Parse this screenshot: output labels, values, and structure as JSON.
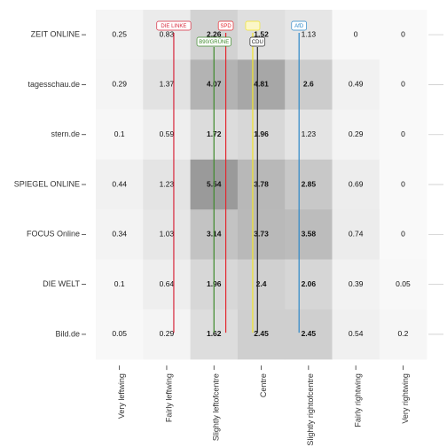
{
  "chart_data": {
    "type": "heatmap",
    "title": "",
    "xlabel": "",
    "ylabel": "",
    "columns": [
      "Very leftwing",
      "Fairly leftwing",
      "Slightly leftofcentre",
      "Centre",
      "Slightly rightofcentre",
      "Fairly rightwing",
      "Very rightwing"
    ],
    "rows": [
      "ZEIT ONLINE",
      "tagesschau.de",
      "stern.de",
      "SPIEGEL ONLINE",
      "FOCUS Online",
      "DIE WELT",
      "Bild.de"
    ],
    "values": [
      [
        0.25,
        0.83,
        2.26,
        1.52,
        1.13,
        0,
        0
      ],
      [
        0.29,
        1.37,
        4.07,
        4.81,
        2.6,
        0.49,
        0
      ],
      [
        0.1,
        0.59,
        1.72,
        1.96,
        1.23,
        0.29,
        0
      ],
      [
        0.44,
        1.23,
        5.54,
        3.78,
        2.85,
        0.69,
        0
      ],
      [
        0.34,
        1.03,
        3.14,
        3.73,
        3.58,
        0.74,
        0
      ],
      [
        0.1,
        0.64,
        1.96,
        2.4,
        2.06,
        0.39,
        0.05
      ],
      [
        0.05,
        0.29,
        1.62,
        2.45,
        2.45,
        0.54,
        0.2
      ]
    ],
    "color_scale": {
      "low": "#f9f9f9",
      "high": "#9a9a9a",
      "min": 0,
      "max": 5.54
    },
    "party_lines": [
      {
        "name": "DIE LINKE",
        "color": "#d7283d",
        "x_position": 1.15
      },
      {
        "name": "SPD",
        "color": "#e3262e",
        "x_position": 2.25
      },
      {
        "name": "B90/GRÜNE",
        "color": "#3e8a2c",
        "x_position": 2.0
      },
      {
        "name": "",
        "color": "#f2e52a",
        "x_position": 2.82
      },
      {
        "name": "CDU",
        "color": "#222222",
        "x_position": 2.92
      },
      {
        "name": "AfD",
        "color": "#2b87c8",
        "x_position": 3.8
      }
    ]
  }
}
